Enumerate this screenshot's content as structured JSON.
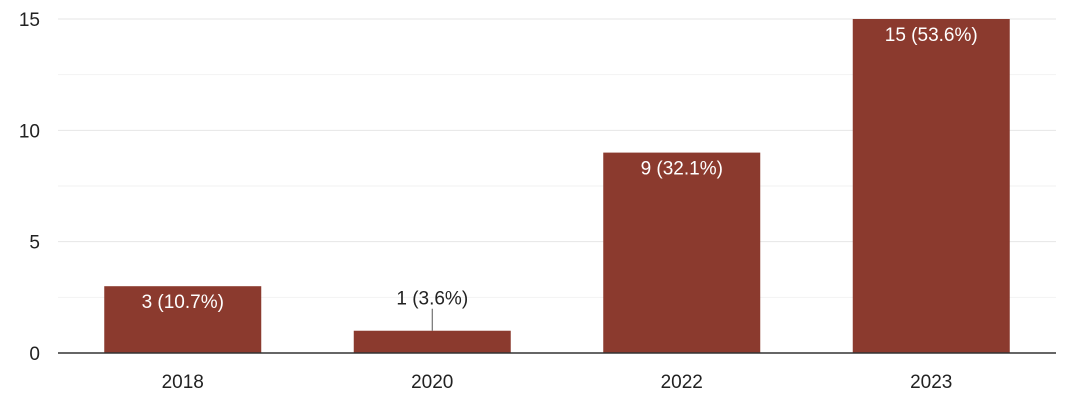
{
  "chart_data": {
    "type": "bar",
    "categories": [
      "2018",
      "2020",
      "2022",
      "2023"
    ],
    "values": [
      3,
      1,
      9,
      15
    ],
    "data_labels": [
      "3 (10.7%)",
      "1 (3.6%)",
      "9 (32.1%)",
      "15 (53.6%)"
    ],
    "ylim": [
      0,
      15
    ],
    "y_ticks": [
      0,
      5,
      10,
      15
    ],
    "grid": true,
    "legend": "none",
    "colors": {
      "bar": "#8b3a2e",
      "grid_major": "#e6e6e6",
      "grid_minor": "#f2f2f2",
      "axis": "#333333",
      "label_inside": "#ffffff",
      "label_outside": "#222222"
    }
  }
}
